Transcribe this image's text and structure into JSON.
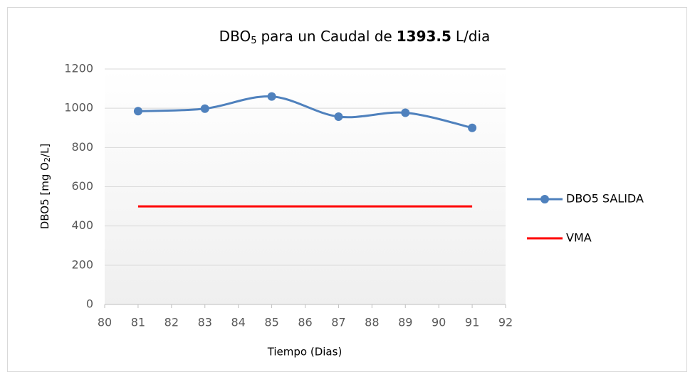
{
  "chart_data": {
    "type": "line",
    "title": [
      "DBO",
      "5",
      "para un Caudal de",
      "1393.5",
      "L/dia"
    ],
    "x_label": "Tiempo (Dias)",
    "y_label": [
      "DBO5 [mg O",
      "2",
      "/L]"
    ],
    "xlim": [
      80,
      92
    ],
    "xticks": [
      80,
      81,
      82,
      83,
      84,
      85,
      86,
      87,
      88,
      89,
      90,
      91,
      92
    ],
    "ylim": [
      0,
      1200
    ],
    "yticks": [
      0,
      200,
      400,
      600,
      800,
      1000,
      1200
    ],
    "grid": true,
    "legend": "right",
    "series": [
      {
        "name": "DBO5 SALIDA",
        "color": "#4f81bd",
        "smooth": true,
        "markers": true,
        "x": [
          81,
          83,
          85,
          87,
          89,
          91
        ],
        "values": [
          985,
          998,
          1060,
          957,
          977,
          900
        ]
      },
      {
        "name": "VMA",
        "color": "#ff0000",
        "smooth": false,
        "markers": false,
        "x": [
          81,
          91
        ],
        "values": [
          500,
          500
        ]
      }
    ]
  }
}
